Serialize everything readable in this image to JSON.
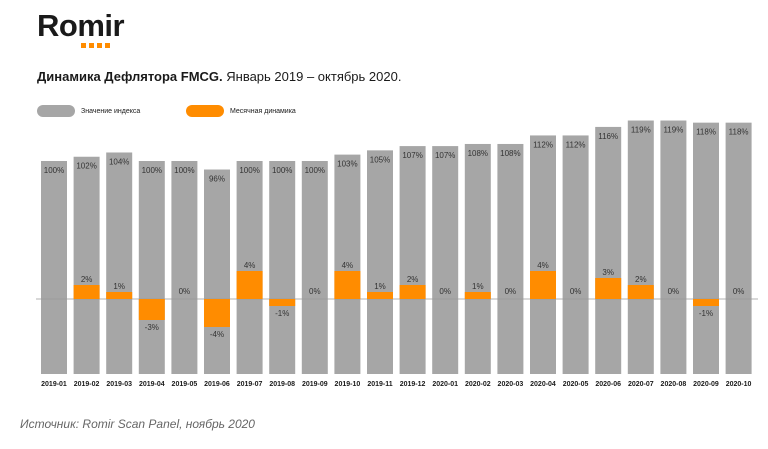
{
  "logo": {
    "text": "Romir"
  },
  "title": {
    "bold": "Динамика Дефлятора FMCG.",
    "rest": " Январь 2019 – октябрь 2020."
  },
  "legend": [
    {
      "label": "Значение индекса",
      "color": "#a6a6a6"
    },
    {
      "label": "Месячная динамика",
      "color": "#ff8c00"
    }
  ],
  "source": "Источник: Romir Scan Panel, ноябрь 2020",
  "colors": {
    "index_bar": "#a6a6a6",
    "change_bar": "#ff8c00",
    "baseline": "#999999"
  },
  "chart_data": {
    "type": "bar",
    "title": "Динамика Дефлятора FMCG. Январь 2019 – октябрь 2020.",
    "categories": [
      "2019-01",
      "2019-02",
      "2019-03",
      "2019-04",
      "2019-05",
      "2019-06",
      "2019-07",
      "2019-08",
      "2019-09",
      "2019-10",
      "2019-11",
      "2019-12",
      "2020-01",
      "2020-02",
      "2020-03",
      "2020-04",
      "2020-05",
      "2020-06",
      "2020-07",
      "2020-08",
      "2020-09",
      "2020-10"
    ],
    "series": [
      {
        "name": "Значение индекса",
        "values": [
          100,
          102,
          104,
          100,
          100,
          96,
          100,
          100,
          100,
          103,
          105,
          107,
          107,
          108,
          108,
          112,
          112,
          116,
          119,
          119,
          118,
          118
        ]
      },
      {
        "name": "Месячная динамика",
        "values": [
          0,
          2,
          1,
          -3,
          0,
          -4,
          4,
          -1,
          0,
          4,
          1,
          2,
          0,
          1,
          0,
          4,
          0,
          3,
          2,
          0,
          -1,
          0
        ]
      }
    ],
    "index_labels": [
      "100%",
      "102%",
      "104%",
      "100%",
      "100%",
      "96%",
      "100%",
      "100%",
      "100%",
      "103%",
      "105%",
      "107%",
      "107%",
      "108%",
      "108%",
      "112%",
      "112%",
      "116%",
      "119%",
      "119%",
      "118%",
      "118%"
    ],
    "change_labels": [
      "",
      "2%",
      "1%",
      "-3%",
      "0%",
      "-4%",
      "4%",
      "-1%",
      "0%",
      "4%",
      "1%",
      "2%",
      "0%",
      "1%",
      "0%",
      "4%",
      "0%",
      "3%",
      "2%",
      "0%",
      "-1%",
      "0%"
    ],
    "legend_position": "top-left",
    "grid": false
  }
}
